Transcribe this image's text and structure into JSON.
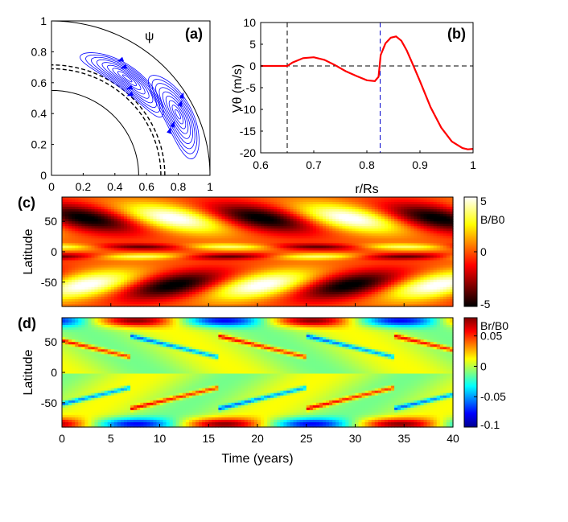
{
  "chart_data": [
    {
      "panel": "(a)",
      "type": "contour",
      "annotation": "ψ",
      "xlim": [
        0,
        1
      ],
      "ylim": [
        0,
        1
      ],
      "xticks": [
        "0",
        "0.2",
        "0.4",
        "0.6",
        "0.8",
        "1"
      ],
      "yticks": [
        "0",
        "0.2",
        "0.4",
        "0.6",
        "0.8",
        "1"
      ],
      "inner_core_radius": 0.55,
      "tachocline_radius": 0.7,
      "surface_radius": 1.0,
      "streamline_color": "#0000ff",
      "cells": 2
    },
    {
      "panel": "(b)",
      "type": "line",
      "xlabel": "r/Rs",
      "ylabel": "Vθ (m/s)",
      "xlim": [
        0.6,
        1.0
      ],
      "ylim": [
        -20,
        10
      ],
      "xticks": [
        "0.6",
        "0.7",
        "0.8",
        "0.9",
        "1"
      ],
      "yticks": [
        "10",
        "5",
        "0",
        "-5",
        "-10",
        "-15",
        "-20"
      ],
      "vlines": [
        0.65,
        0.825
      ],
      "series": [
        {
          "color": "#ff0000",
          "x": [
            0.6,
            0.65,
            0.66,
            0.68,
            0.7,
            0.72,
            0.74,
            0.76,
            0.78,
            0.8,
            0.815,
            0.822,
            0.826,
            0.835,
            0.845,
            0.855,
            0.865,
            0.875,
            0.885,
            0.9,
            0.92,
            0.94,
            0.96,
            0.98,
            0.99,
            1.0
          ],
          "y": [
            0,
            0,
            0.8,
            1.8,
            2.0,
            1.4,
            0.2,
            -1.2,
            -2.3,
            -3.3,
            -3.5,
            -2.5,
            2.5,
            5.2,
            6.5,
            6.8,
            5.8,
            3.6,
            0.8,
            -3.5,
            -9.5,
            -14.2,
            -17.4,
            -18.9,
            -19.2,
            -19.1
          ]
        }
      ]
    },
    {
      "panel": "(c)",
      "type": "heatmap",
      "xlabel": "",
      "ylabel": "Latitude",
      "xlim": [
        0,
        40
      ],
      "ylim": [
        -90,
        90
      ],
      "yticks": [
        "50",
        "0",
        "-50"
      ],
      "colorbar_label": "B/B0",
      "colorbar_ticks": [
        "5",
        "0",
        "-5"
      ],
      "clim": [
        -5,
        5
      ],
      "colormap": "hot",
      "period_years": 18
    },
    {
      "panel": "(d)",
      "type": "heatmap",
      "xlabel": "Time (years)",
      "ylabel": "Latitude",
      "xlim": [
        0,
        40
      ],
      "ylim": [
        -90,
        90
      ],
      "xticks": [
        "0",
        "5",
        "10",
        "15",
        "20",
        "25",
        "30",
        "35",
        "40"
      ],
      "yticks": [
        "50",
        "0",
        "-50"
      ],
      "colorbar_label": "Br/B0",
      "colorbar_ticks": [
        "0.05",
        "0",
        "-0.05",
        "-0.1"
      ],
      "clim": [
        -0.1,
        0.08
      ],
      "colormap": "jet",
      "period_years": 18
    }
  ]
}
